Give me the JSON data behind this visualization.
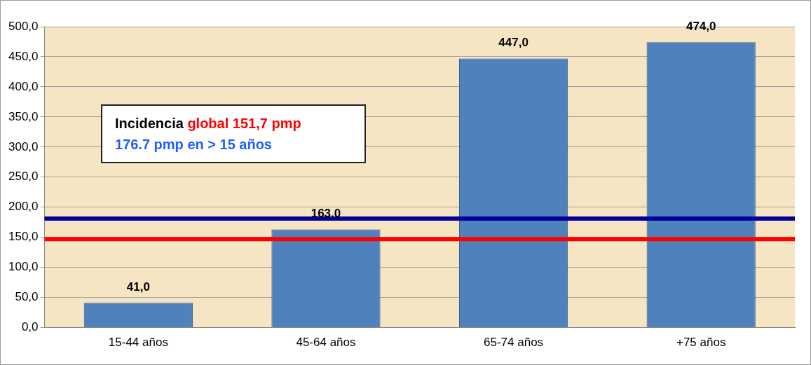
{
  "chart_data": {
    "type": "bar",
    "categories": [
      "15-44 años",
      "45-64 años",
      "65-74 años",
      "+75 años"
    ],
    "values": [
      41.0,
      163.0,
      447.0,
      474.0
    ],
    "color": "#4f81bd",
    "value_labels": [
      "41,0",
      "163,0",
      "447,0",
      "474,0"
    ],
    "ylim": [
      0,
      500
    ],
    "yticks": [
      {
        "value": 0,
        "label": "0,0"
      },
      {
        "value": 50,
        "label": "50,0"
      },
      {
        "value": 100,
        "label": "100,0"
      },
      {
        "value": 150,
        "label": "150,0"
      },
      {
        "value": 200,
        "label": "200,0"
      },
      {
        "value": 250,
        "label": "250,0"
      },
      {
        "value": 300,
        "label": "300,0"
      },
      {
        "value": 350,
        "label": "350,0"
      },
      {
        "value": 400,
        "label": "400,0"
      },
      {
        "value": 450,
        "label": "450,0"
      },
      {
        "value": 500,
        "label": "500,0"
      }
    ],
    "grid": "y",
    "legend": false,
    "ref_lines": [
      {
        "axis": "y",
        "value": 181,
        "color": "#000099"
      },
      {
        "axis": "y",
        "value": 147,
        "color": "#ff0000"
      }
    ],
    "annotations": [
      "Incidencia ",
      "global 151,7 pmp",
      "176.7 pmp en > 15 años"
    ]
  }
}
